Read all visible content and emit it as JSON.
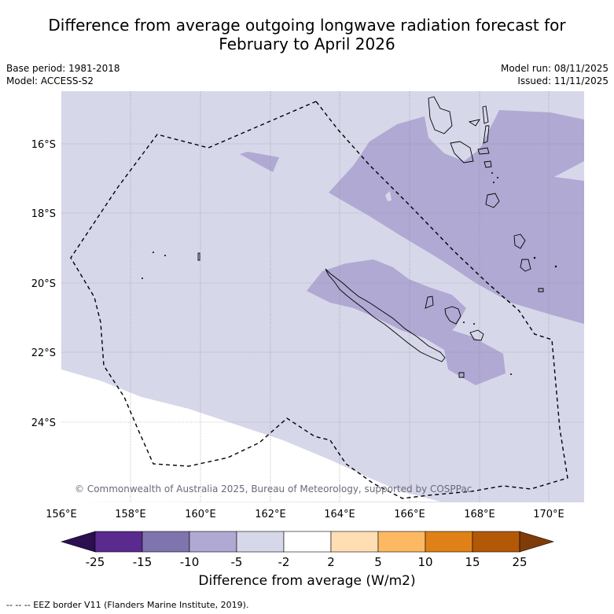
{
  "title": {
    "line1": "Difference from average outgoing longwave radiation forecast for",
    "line2": "February to April 2026"
  },
  "meta_left": {
    "base_period": "Base period: 1981-2018",
    "model": "Model: ACCESS-S2"
  },
  "meta_right": {
    "model_run": "Model run: 08/11/2025",
    "issued": "Issued: 11/11/2025"
  },
  "map": {
    "lat_labels": [
      "16°S",
      "18°S",
      "20°S",
      "22°S",
      "24°S"
    ],
    "lon_labels": [
      "156°E",
      "158°E",
      "160°E",
      "162°E",
      "164°E",
      "166°E",
      "168°E",
      "170°E"
    ],
    "copyright": "© Commonwealth of Australia 2025, Bureau of Meteorology, supported by COSPPac",
    "colors": {
      "light": "#d7d7ea",
      "medium": "#b0a9d3",
      "land_line": "#000000",
      "grid": "#888888"
    }
  },
  "colorbar": {
    "ticks": [
      "-25",
      "-15",
      "-10",
      "-5",
      "-2",
      "2",
      "5",
      "10",
      "15",
      "25"
    ],
    "colors": [
      "#2b0f50",
      "#5a2a8e",
      "#7f74ae",
      "#b0a9d3",
      "#d7d7ea",
      "#ffffff",
      "#ffdeb3",
      "#fdb862",
      "#e08117",
      "#b35806",
      "#7f3b08"
    ],
    "title": "Difference from average (W/m2)"
  },
  "footer": "-- -- -- EEZ border V11 (Flanders Marine Institute, 2019)."
}
